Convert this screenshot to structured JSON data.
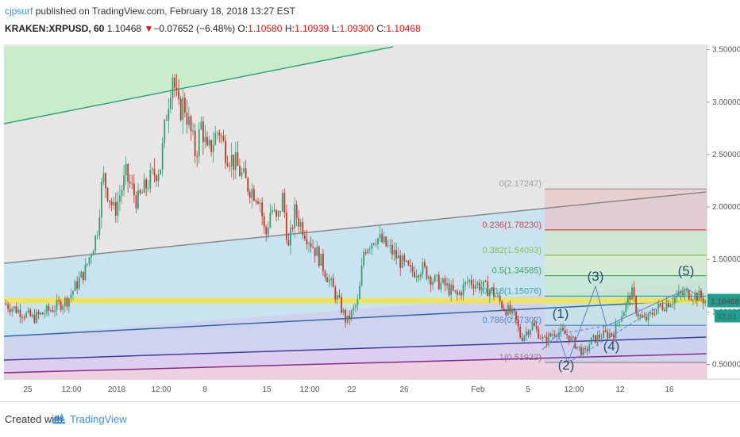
{
  "header": {
    "author": "cjpsurf",
    "published_text": "published on TradingView.com, February 18, 2018 13:27 EST",
    "symbol": "KRAKEN:XRPUSD, 60",
    "last": "1.10468",
    "change_arrow": "▼",
    "change": "−0.07652 (−6.48%)",
    "open_label": "O:",
    "open": "1.10580",
    "high_label": "H:",
    "high": "1.10939",
    "low_label": "L:",
    "low": "1.09300",
    "close_label": "C:",
    "close": "1.10468"
  },
  "price_badge": "1.10468",
  "time_badge": "32:51",
  "footer": {
    "created_with": "Created with",
    "brand": "TradingView"
  },
  "colors": {
    "bull": "#3a9e72",
    "bear": "#c0392b",
    "badge": "#1d9e8f",
    "wave": "#2a5078"
  },
  "chart_data": {
    "type": "candlestick",
    "y_axis": {
      "min": 0.36,
      "max": 3.55,
      "ticks": [
        "3.50000",
        "3.00000",
        "2.50000",
        "2.00000",
        "1.50000",
        "1.00000",
        "0.50000"
      ],
      "tick_values": [
        3.5,
        3.0,
        2.5,
        2.0,
        1.5,
        1.0,
        0.5
      ],
      "position": "right"
    },
    "x_axis": {
      "labels": [
        "25",
        "12:00",
        "2018",
        "12:00",
        "8",
        "15",
        "12:00",
        "22",
        "26",
        "Feb",
        "5",
        "12:00",
        "12",
        "16"
      ]
    },
    "price_path": [
      [
        0,
        1.08
      ],
      [
        3,
        1.0
      ],
      [
        5,
        0.94
      ],
      [
        8,
        1.02
      ],
      [
        11,
        1.12
      ],
      [
        14,
        1.4
      ],
      [
        16,
        1.75
      ],
      [
        17,
        2.3
      ],
      [
        19,
        1.95
      ],
      [
        21,
        2.3
      ],
      [
        23,
        2.05
      ],
      [
        25,
        2.25
      ],
      [
        27,
        2.4
      ],
      [
        28,
        2.9
      ],
      [
        29,
        3.3
      ],
      [
        30,
        2.9
      ],
      [
        31,
        3.0
      ],
      [
        33,
        2.5
      ],
      [
        34,
        2.8
      ],
      [
        35,
        2.5
      ],
      [
        37,
        2.75
      ],
      [
        38,
        2.55
      ],
      [
        40,
        2.4
      ],
      [
        42,
        2.2
      ],
      [
        44,
        2.1
      ],
      [
        45,
        1.7
      ],
      [
        46,
        2.0
      ],
      [
        47,
        1.85
      ],
      [
        48,
        2.1
      ],
      [
        49,
        1.6
      ],
      [
        50,
        1.95
      ],
      [
        52,
        1.75
      ],
      [
        54,
        1.55
      ],
      [
        56,
        1.3
      ],
      [
        58,
        1.05
      ],
      [
        59,
        0.9
      ],
      [
        61,
        1.1
      ],
      [
        62,
        1.6
      ],
      [
        64,
        1.72
      ],
      [
        66,
        1.62
      ],
      [
        68,
        1.5
      ],
      [
        70,
        1.38
      ],
      [
        72,
        1.42
      ],
      [
        74,
        1.3
      ],
      [
        76,
        1.25
      ],
      [
        78,
        1.15
      ],
      [
        80,
        1.3
      ],
      [
        82,
        1.25
      ],
      [
        84,
        1.2
      ],
      [
        86,
        1.05
      ],
      [
        88,
        0.95
      ],
      [
        89,
        0.75
      ],
      [
        91,
        0.88
      ],
      [
        93,
        0.72
      ],
      [
        95,
        0.82
      ],
      [
        97,
        0.78
      ],
      [
        99,
        0.65
      ],
      [
        100,
        0.6
      ],
      [
        101,
        0.72
      ],
      [
        103,
        0.78
      ],
      [
        105,
        0.8
      ],
      [
        106,
        0.95
      ],
      [
        107,
        1.05
      ],
      [
        108,
        1.2
      ],
      [
        109,
        1.0
      ],
      [
        110,
        0.92
      ],
      [
        111,
        0.94
      ],
      [
        112,
        1.02
      ],
      [
        114,
        1.08
      ],
      [
        116,
        1.15
      ],
      [
        118,
        1.18
      ],
      [
        120,
        1.14
      ],
      [
        121,
        1.1
      ]
    ],
    "fibonacci": {
      "levels": [
        {
          "label": "0(2.17247)",
          "value": 2.17247,
          "color": "#9e9e9e"
        },
        {
          "label": "0.236(1.78230)",
          "value": 1.7823,
          "color": "#e04040"
        },
        {
          "label": "0.382(1.54093)",
          "value": 1.54093,
          "color": "#8cc04a"
        },
        {
          "label": "0.5(1.34585)",
          "value": 1.34585,
          "color": "#3aa655"
        },
        {
          "label": "0.618(1.15076)",
          "value": 1.15076,
          "color": "#2aa6a6"
        },
        {
          "label": "0.786(0.87302)",
          "value": 0.87302,
          "color": "#4a8ad6"
        },
        {
          "label": "1(0.51922)",
          "value": 0.51922,
          "color": "#7f7f7f"
        }
      ]
    },
    "channels": [
      {
        "name": "",
        "color": "#2ea877"
      },
      {
        "name": "",
        "color": "#888888"
      },
      {
        "name": "",
        "color": "#2a6aa8"
      },
      {
        "name": "",
        "color": "#3b3ba0"
      },
      {
        "name": "",
        "color": "#8a2a8a"
      }
    ],
    "highlight_line": {
      "value": 1.10468,
      "color": "#f5e44a"
    },
    "elliott_waves": [
      "(1)",
      "(2)",
      "(3)",
      "(4)",
      "(5)"
    ]
  }
}
